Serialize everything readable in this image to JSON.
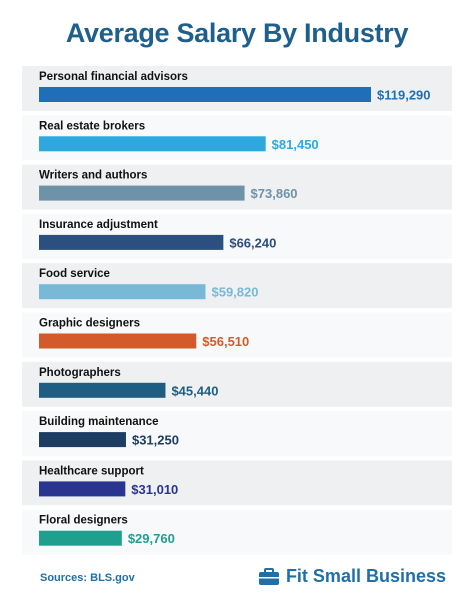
{
  "chart_data": {
    "type": "bar",
    "orientation": "horizontal",
    "title": "Average Salary By Industry",
    "categories": [
      "Personal financial advisors",
      "Real estate brokers",
      "Writers and authors",
      "Insurance adjustment",
      "Food service",
      "Graphic designers",
      "Photographers",
      "Building maintenance",
      "Healthcare support",
      "Floral designers"
    ],
    "values": [
      119290,
      81450,
      73860,
      66240,
      59820,
      56510,
      45440,
      31250,
      31010,
      29760
    ],
    "value_labels": [
      "$119,290",
      "$81,450",
      "$73,860",
      "$66,240",
      "$59,820",
      "$56,510",
      "$45,440",
      "$31,250",
      "$31,010",
      "$29,760"
    ],
    "colors": [
      "#1f6fb8",
      "#2fa8e0",
      "#6e93a8",
      "#2b4f7e",
      "#79b9d8",
      "#d35a2a",
      "#1f5e82",
      "#1d3d63",
      "#2a3590",
      "#1fa08f"
    ],
    "xlim": [
      0,
      119290
    ],
    "grid": false,
    "legend": "none"
  },
  "footer": {
    "source": "Sources: BLS.gov",
    "brand": "Fit Small Business",
    "brand_icon": "briefcase-icon",
    "brand_color": "#1f6fa8"
  }
}
